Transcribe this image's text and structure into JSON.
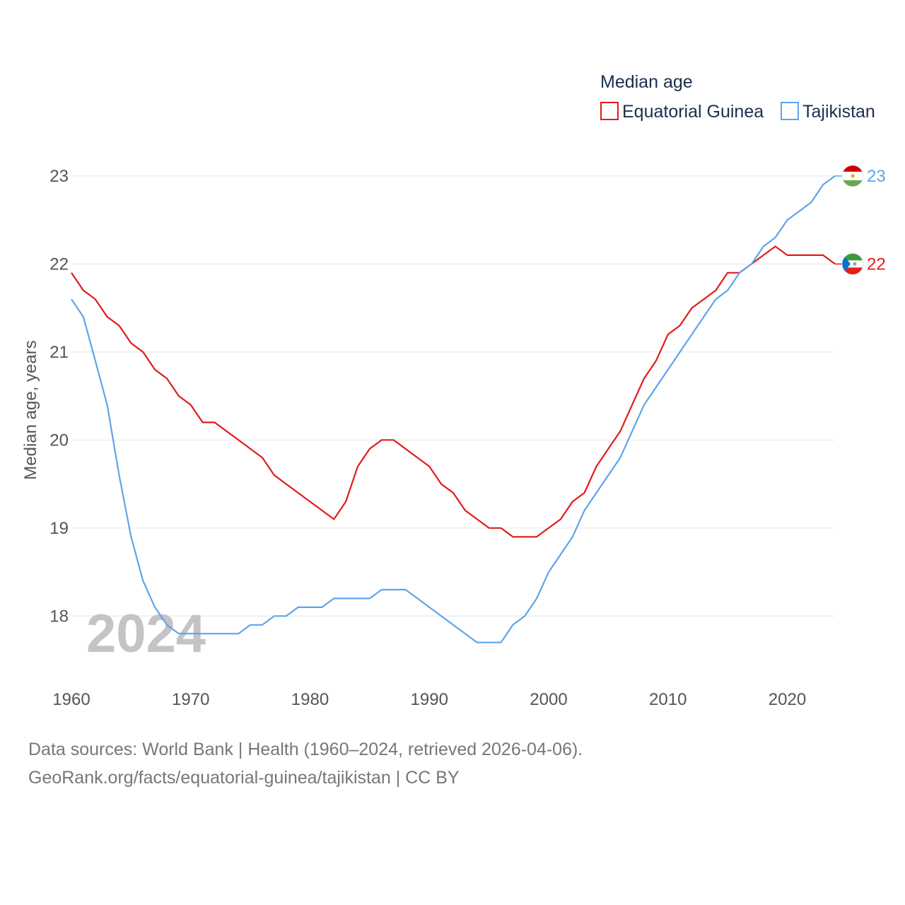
{
  "chart_data": {
    "type": "line",
    "title": "Median age",
    "ylabel": "Median age, years",
    "xlabel": "",
    "xlim": [
      1960,
      2024
    ],
    "ylim": [
      17.4,
      23.2
    ],
    "x_ticks": [
      1960,
      1970,
      1980,
      1990,
      2000,
      2010,
      2020
    ],
    "y_ticks": [
      18,
      19,
      20,
      21,
      22,
      23
    ],
    "year_marker": "2024",
    "x": [
      1960,
      1961,
      1962,
      1963,
      1964,
      1965,
      1966,
      1967,
      1968,
      1969,
      1970,
      1971,
      1972,
      1973,
      1974,
      1975,
      1976,
      1977,
      1978,
      1979,
      1980,
      1981,
      1982,
      1983,
      1984,
      1985,
      1986,
      1987,
      1988,
      1989,
      1990,
      1991,
      1992,
      1993,
      1994,
      1995,
      1996,
      1997,
      1998,
      1999,
      2000,
      2001,
      2002,
      2003,
      2004,
      2005,
      2006,
      2007,
      2008,
      2009,
      2010,
      2011,
      2012,
      2013,
      2014,
      2015,
      2016,
      2017,
      2018,
      2019,
      2020,
      2021,
      2022,
      2023,
      2024
    ],
    "series": [
      {
        "name": "Equatorial Guinea",
        "color": "#e31a1c",
        "end_label": "22",
        "values": [
          21.9,
          21.7,
          21.6,
          21.4,
          21.3,
          21.1,
          21.0,
          20.8,
          20.7,
          20.5,
          20.4,
          20.2,
          20.2,
          20.1,
          20.0,
          19.9,
          19.8,
          19.6,
          19.5,
          19.4,
          19.3,
          19.2,
          19.1,
          19.3,
          19.7,
          19.9,
          20.0,
          20.0,
          19.9,
          19.8,
          19.7,
          19.5,
          19.4,
          19.2,
          19.1,
          19.0,
          19.0,
          18.9,
          18.9,
          18.9,
          19.0,
          19.1,
          19.3,
          19.4,
          19.7,
          19.9,
          20.1,
          20.4,
          20.7,
          20.9,
          21.2,
          21.3,
          21.5,
          21.6,
          21.7,
          21.9,
          21.9,
          22.0,
          22.1,
          22.2,
          22.1,
          22.1,
          22.1,
          22.1,
          22.0
        ]
      },
      {
        "name": "Tajikistan",
        "color": "#5ea5e8",
        "end_label": "23",
        "values": [
          21.6,
          21.4,
          20.9,
          20.4,
          19.6,
          18.9,
          18.4,
          18.1,
          17.9,
          17.8,
          17.8,
          17.8,
          17.8,
          17.8,
          17.8,
          17.9,
          17.9,
          18.0,
          18.0,
          18.1,
          18.1,
          18.1,
          18.2,
          18.2,
          18.2,
          18.2,
          18.3,
          18.3,
          18.3,
          18.2,
          18.1,
          18.0,
          17.9,
          17.8,
          17.7,
          17.7,
          17.7,
          17.9,
          18.0,
          18.2,
          18.5,
          18.7,
          18.9,
          19.2,
          19.4,
          19.6,
          19.8,
          20.1,
          20.4,
          20.6,
          20.8,
          21.0,
          21.2,
          21.4,
          21.6,
          21.7,
          21.9,
          22.0,
          22.2,
          22.3,
          22.5,
          22.6,
          22.7,
          22.9,
          23.0
        ]
      }
    ]
  },
  "footer": {
    "sources": "Data sources: World Bank | Health (1960–2024, retrieved 2026-04-06).",
    "attribution": "GeoRank.org/facts/equatorial-guinea/tajikistan | CC BY"
  }
}
